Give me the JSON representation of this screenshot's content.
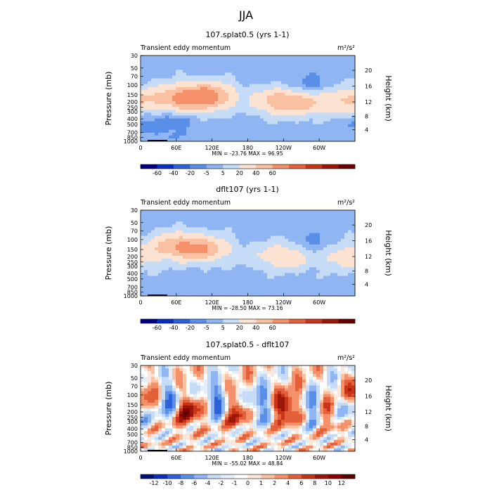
{
  "figure_title": "JJA",
  "chart_data": [
    {
      "type": "heatmap",
      "title": "107.splat0.5 (yrs 1-1)",
      "subtitle_left": "Transient eddy momentum",
      "units": "m²/s²",
      "ylabel": "Pressure (mb)",
      "ylabel_right": "Height (km)",
      "x_ticks": [
        "0",
        "60E",
        "120E",
        "180",
        "120W",
        "60W"
      ],
      "y_ticks": [
        "30",
        "50",
        "70",
        "100",
        "150",
        "200",
        "250",
        "300",
        "400",
        "500",
        "700",
        "850",
        "1000"
      ],
      "y_right_ticks": [
        "4",
        "8",
        "12",
        "16",
        "20"
      ],
      "stats": "MIN = -23.76   MAX =  96.95",
      "colorbar_labels": [
        "-60",
        "-40",
        "-20",
        "-5",
        "5",
        "20",
        "40",
        "60"
      ],
      "features": [
        {
          "lon": 60,
          "p": 175,
          "value": 45
        },
        {
          "lon": 110,
          "p": 160,
          "value": 75
        },
        {
          "lon": 230,
          "p": 190,
          "value": 40
        },
        {
          "lon": 270,
          "p": 200,
          "value": 42
        },
        {
          "lon": 345,
          "p": 190,
          "value": 40
        },
        {
          "lon": 280,
          "p": 125,
          "value": -20
        },
        {
          "lon": 40,
          "p": 450,
          "value": -15
        }
      ]
    },
    {
      "type": "heatmap",
      "title": "dflt107 (yrs 1-1)",
      "subtitle_left": "Transient eddy momentum",
      "units": "m²/s²",
      "ylabel": "Pressure (mb)",
      "ylabel_right": "Height (km)",
      "x_ticks": [
        "0",
        "60E",
        "120E",
        "180",
        "120W",
        "60W"
      ],
      "y_ticks": [
        "30",
        "50",
        "70",
        "100",
        "150",
        "200",
        "250",
        "300",
        "400",
        "500",
        "700",
        "850",
        "1000"
      ],
      "y_right_ticks": [
        "4",
        "8",
        "12",
        "16",
        "20"
      ],
      "stats": "MIN = -28.50   MAX =  73.16",
      "colorbar_labels": [
        "-60",
        "-40",
        "-20",
        "-5",
        "5",
        "20",
        "40",
        "60"
      ],
      "features": [
        {
          "lon": 60,
          "p": 130,
          "value": 50
        },
        {
          "lon": 110,
          "p": 150,
          "value": 45
        },
        {
          "lon": 240,
          "p": 200,
          "value": 40
        },
        {
          "lon": 340,
          "p": 200,
          "value": 35
        },
        {
          "lon": 300,
          "p": 145,
          "value": -15
        }
      ]
    },
    {
      "type": "heatmap",
      "title": "107.splat0.5 - dflt107",
      "subtitle_left": "Transient eddy momentum",
      "units": "m²/s²",
      "ylabel": "Pressure (mb)",
      "ylabel_right": "Height (km)",
      "x_ticks": [
        "0",
        "60E",
        "120E",
        "180",
        "120W",
        "60W"
      ],
      "y_ticks": [
        "30",
        "50",
        "70",
        "100",
        "150",
        "200",
        "250",
        "300",
        "400",
        "500",
        "700",
        "850",
        "1000"
      ],
      "y_right_ticks": [
        "4",
        "8",
        "12",
        "16",
        "20"
      ],
      "stats": "MIN = -55.02   MAX =  48.84",
      "colorbar_labels": [
        "-12",
        "-10",
        "-8",
        "-6",
        "-4",
        "-2",
        "-1",
        "0",
        "1",
        "2",
        "4",
        "6",
        "8",
        "10",
        "12"
      ],
      "features": [
        {
          "lon": 10,
          "p": 110,
          "value": 12
        },
        {
          "lon": 45,
          "p": 120,
          "value": -12
        },
        {
          "lon": 80,
          "p": 170,
          "value": 12
        },
        {
          "lon": 130,
          "p": 140,
          "value": -12
        },
        {
          "lon": 160,
          "p": 180,
          "value": 12
        },
        {
          "lon": 200,
          "p": 160,
          "value": -10
        },
        {
          "lon": 245,
          "p": 170,
          "value": 12
        },
        {
          "lon": 290,
          "p": 180,
          "value": -10
        },
        {
          "lon": 320,
          "p": 190,
          "value": 12
        },
        {
          "lon": 345,
          "p": 170,
          "value": -12
        }
      ]
    }
  ],
  "colors": {
    "sequential": [
      "#000080",
      "#0a2ec0",
      "#2c61d9",
      "#5a8fe8",
      "#8fb5f2",
      "#c6dcf6",
      "#fce3d1",
      "#f9c1a1",
      "#f4916b",
      "#e4603a",
      "#c73417",
      "#9c1708",
      "#6b0000"
    ],
    "diverging": [
      "#00107a",
      "#0a2ec0",
      "#2c61d9",
      "#5a8fe8",
      "#8fb5f2",
      "#c6dcf6",
      "#e3eefb",
      "#ffffff",
      "#fbe7d9",
      "#f9c1a1",
      "#f4916b",
      "#e4603a",
      "#c73417",
      "#9c1708",
      "#8b0000",
      "#5e0000"
    ]
  }
}
